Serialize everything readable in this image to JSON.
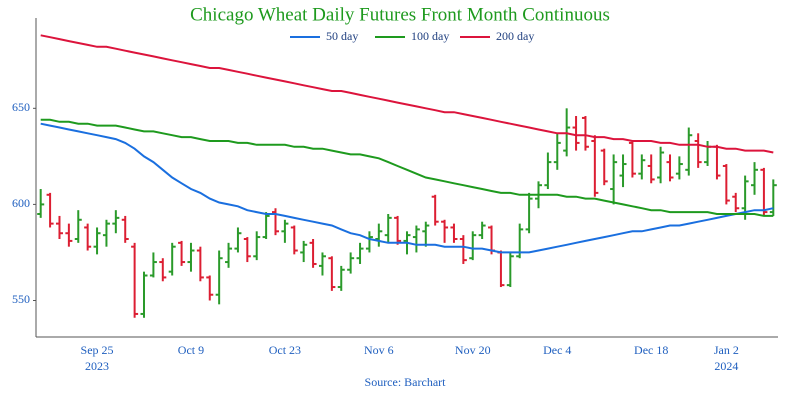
{
  "chart_data": {
    "type": "ohlc",
    "title": "Chicago Wheat Daily Futures Front Month Continuous",
    "source": "Source: Barchart",
    "categories": [
      null,
      null,
      null,
      null,
      null,
      null,
      "Sep 25",
      null,
      null,
      null,
      null,
      null,
      null,
      null,
      null,
      null,
      "Oct 9",
      null,
      null,
      null,
      null,
      null,
      null,
      null,
      null,
      null,
      "Oct 23",
      null,
      null,
      null,
      null,
      null,
      null,
      null,
      null,
      null,
      "Nov 6",
      null,
      null,
      null,
      null,
      null,
      null,
      null,
      null,
      null,
      "Nov 20",
      null,
      null,
      null,
      null,
      null,
      null,
      null,
      null,
      "Dec 4",
      null,
      null,
      null,
      null,
      null,
      null,
      null,
      null,
      null,
      "Dec 18",
      null,
      null,
      null,
      null,
      null,
      null,
      null,
      "Jan 2",
      null,
      null,
      null,
      null,
      null
    ],
    "category_years": [
      null,
      null,
      null,
      null,
      null,
      null,
      "2023",
      null,
      null,
      null,
      null,
      null,
      null,
      null,
      null,
      null,
      null,
      null,
      null,
      null,
      null,
      null,
      null,
      null,
      null,
      null,
      null,
      null,
      null,
      null,
      null,
      null,
      null,
      null,
      null,
      null,
      null,
      null,
      null,
      null,
      null,
      null,
      null,
      null,
      null,
      null,
      null,
      null,
      null,
      null,
      null,
      null,
      null,
      null,
      null,
      null,
      null,
      null,
      null,
      null,
      null,
      null,
      null,
      null,
      null,
      null,
      null,
      null,
      null,
      null,
      null,
      null,
      null,
      "2024",
      null,
      null,
      null,
      null,
      null
    ],
    "open": [
      595,
      605,
      590,
      585,
      582,
      588,
      578,
      584,
      590,
      592,
      578,
      543,
      563,
      570,
      565,
      580,
      570,
      576,
      562,
      553,
      570,
      577,
      582,
      573,
      583,
      596,
      586,
      588,
      575,
      580,
      568,
      572,
      557,
      566,
      572,
      577,
      582,
      584,
      593,
      581,
      583,
      586,
      604,
      591,
      588,
      582,
      572,
      584,
      588,
      575,
      558,
      573,
      587,
      603,
      610,
      622,
      628,
      640,
      645,
      633,
      628,
      608,
      615,
      632,
      616,
      620,
      614,
      622,
      616,
      618,
      633,
      622,
      630,
      620,
      604,
      598,
      610,
      618,
      596
    ],
    "high": [
      608,
      606,
      594,
      590,
      597,
      590,
      588,
      592,
      597,
      594,
      580,
      565,
      575,
      572,
      580,
      581,
      580,
      578,
      563,
      576,
      580,
      588,
      583,
      586,
      596,
      598,
      592,
      589,
      581,
      582,
      575,
      573,
      568,
      575,
      580,
      586,
      590,
      595,
      594,
      586,
      589,
      591,
      605,
      592,
      590,
      584,
      586,
      591,
      589,
      576,
      575,
      590,
      606,
      612,
      627,
      637,
      650,
      646,
      646,
      636,
      629,
      626,
      626,
      633,
      626,
      626,
      630,
      626,
      625,
      640,
      637,
      633,
      631,
      621,
      606,
      615,
      622,
      619,
      613
    ],
    "low": [
      593,
      588,
      582,
      578,
      580,
      576,
      574,
      578,
      585,
      580,
      541,
      541,
      562,
      560,
      563,
      568,
      565,
      560,
      550,
      548,
      567,
      575,
      570,
      571,
      582,
      584,
      580,
      574,
      570,
      567,
      563,
      555,
      555,
      564,
      569,
      575,
      578,
      580,
      579,
      574,
      575,
      578,
      589,
      580,
      580,
      569,
      571,
      582,
      574,
      557,
      557,
      572,
      585,
      598,
      608,
      618,
      625,
      628,
      628,
      604,
      610,
      600,
      609,
      614,
      613,
      611,
      611,
      612,
      613,
      615,
      619,
      620,
      613,
      600,
      596,
      592,
      605,
      594,
      594
    ],
    "close": [
      600,
      590,
      585,
      581,
      592,
      578,
      585,
      590,
      593,
      582,
      543,
      563,
      570,
      562,
      578,
      570,
      576,
      562,
      553,
      572,
      577,
      585,
      573,
      583,
      594,
      586,
      590,
      576,
      579,
      569,
      573,
      557,
      566,
      572,
      577,
      583,
      586,
      593,
      581,
      584,
      587,
      589,
      591,
      588,
      582,
      571,
      584,
      589,
      576,
      558,
      573,
      587,
      603,
      610,
      622,
      632,
      640,
      632,
      630,
      606,
      612,
      622,
      621,
      616,
      623,
      613,
      627,
      614,
      621,
      636,
      622,
      630,
      615,
      602,
      598,
      612,
      618,
      596,
      610
    ],
    "up_color": "#2a9a2a",
    "down_color": "#dc1e32",
    "series": [
      {
        "name": "50 day",
        "color": "#1a6fdf",
        "values": [
          642,
          641,
          640,
          639,
          638,
          637,
          636,
          635,
          634,
          632,
          629,
          625,
          622,
          618,
          614,
          611,
          608,
          606,
          603,
          601,
          600,
          599,
          597,
          596,
          595,
          595,
          594,
          593,
          592,
          591,
          590,
          589,
          587,
          585,
          584,
          582,
          581,
          580,
          580,
          580,
          579,
          579,
          579,
          578,
          578,
          578,
          577,
          577,
          576,
          575,
          575,
          575,
          575,
          576,
          577,
          578,
          579,
          580,
          581,
          582,
          583,
          584,
          585,
          586,
          586,
          587,
          588,
          589,
          589,
          590,
          591,
          592,
          593,
          594,
          595,
          596,
          597,
          597,
          598
        ]
      },
      {
        "name": "100 day",
        "color": "#1e9a1e",
        "values": [
          644,
          644,
          643,
          643,
          642,
          642,
          641,
          641,
          641,
          640,
          639,
          638,
          638,
          637,
          636,
          635,
          635,
          634,
          633,
          633,
          633,
          632,
          632,
          631,
          631,
          631,
          631,
          630,
          630,
          629,
          629,
          628,
          627,
          626,
          626,
          625,
          624,
          622,
          620,
          618,
          616,
          614,
          613,
          612,
          611,
          610,
          609,
          608,
          607,
          606,
          606,
          605,
          605,
          605,
          605,
          605,
          604,
          604,
          603,
          603,
          602,
          601,
          600,
          599,
          598,
          597,
          597,
          596,
          596,
          596,
          596,
          596,
          595,
          595,
          595,
          595,
          595,
          594,
          594
        ]
      },
      {
        "name": "200 day",
        "color": "#dc143c",
        "values": [
          688,
          687,
          686,
          685,
          684,
          683,
          682,
          682,
          681,
          680,
          679,
          678,
          677,
          676,
          675,
          674,
          673,
          672,
          671,
          671,
          670,
          669,
          668,
          667,
          666,
          665,
          664,
          663,
          662,
          661,
          660,
          659,
          659,
          658,
          657,
          656,
          655,
          654,
          653,
          652,
          651,
          650,
          649,
          648,
          648,
          647,
          646,
          645,
          644,
          643,
          642,
          641,
          640,
          639,
          638,
          637,
          637,
          636,
          636,
          635,
          635,
          634,
          634,
          633,
          633,
          633,
          632,
          632,
          631,
          631,
          631,
          630,
          630,
          629,
          629,
          628,
          628,
          628,
          627
        ]
      }
    ],
    "ylim": [
      531,
      697
    ],
    "yticks": [
      550,
      600,
      650
    ],
    "grid": false,
    "legend": "top"
  }
}
